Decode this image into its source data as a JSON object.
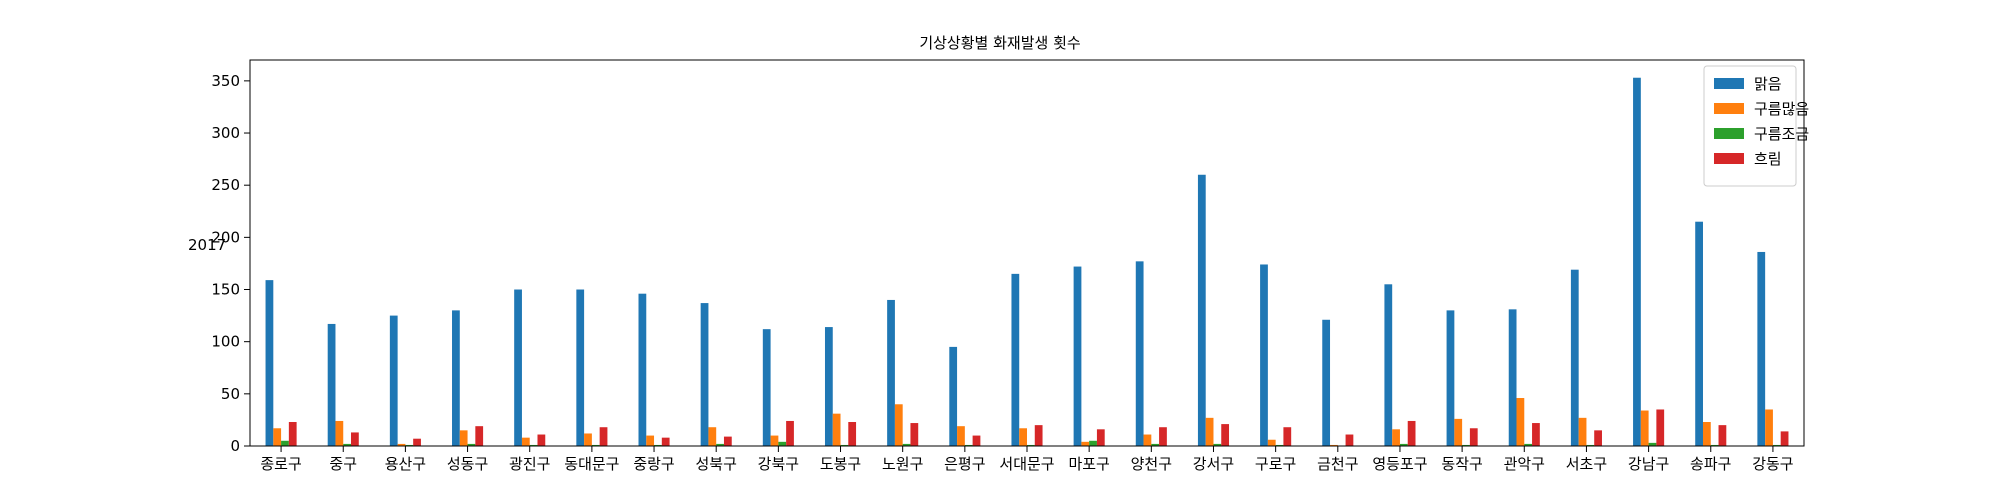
{
  "chart_data": {
    "type": "bar",
    "title": "기상상황별 화재발생 횟수",
    "xlabel": "",
    "ylabel": "2017",
    "ylim": [
      0,
      370
    ],
    "yticks": [
      0,
      50,
      100,
      150,
      200,
      250,
      300,
      350
    ],
    "ytick_labels": [
      "0",
      "50",
      "100",
      "150",
      "200",
      "250",
      "300",
      "350"
    ],
    "grid": false,
    "legend_position": "top-right",
    "categories": [
      "종로구",
      "중구",
      "용산구",
      "성동구",
      "광진구",
      "동대문구",
      "중랑구",
      "성북구",
      "강북구",
      "도봉구",
      "노원구",
      "은평구",
      "서대문구",
      "마포구",
      "양천구",
      "강서구",
      "구로구",
      "금천구",
      "영등포구",
      "동작구",
      "관악구",
      "서초구",
      "강남구",
      "송파구",
      "강동구"
    ],
    "series": [
      {
        "name": "맑음",
        "color": "#1f77b4",
        "values": [
          159,
          117,
          125,
          130,
          150,
          150,
          146,
          137,
          112,
          114,
          140,
          95,
          165,
          172,
          177,
          260,
          174,
          121,
          155,
          130,
          131,
          169,
          353,
          215,
          186
        ]
      },
      {
        "name": "구름많음",
        "color": "#ff7f0e",
        "values": [
          17,
          24,
          2,
          15,
          8,
          12,
          10,
          18,
          10,
          31,
          40,
          19,
          17,
          4,
          11,
          27,
          6,
          1,
          16,
          26,
          46,
          27,
          34,
          23,
          35
        ]
      },
      {
        "name": "구름조금",
        "color": "#2ca02c",
        "values": [
          5,
          2,
          1,
          2,
          1,
          1,
          1,
          2,
          4,
          1,
          2,
          1,
          1,
          5,
          2,
          2,
          1,
          0,
          2,
          1,
          2,
          1,
          3,
          1,
          1
        ]
      },
      {
        "name": "흐림",
        "color": "#d62728",
        "values": [
          23,
          13,
          7,
          19,
          11,
          18,
          8,
          9,
          24,
          23,
          22,
          10,
          20,
          16,
          18,
          21,
          18,
          11,
          24,
          17,
          22,
          15,
          35,
          20,
          14
        ]
      }
    ]
  }
}
